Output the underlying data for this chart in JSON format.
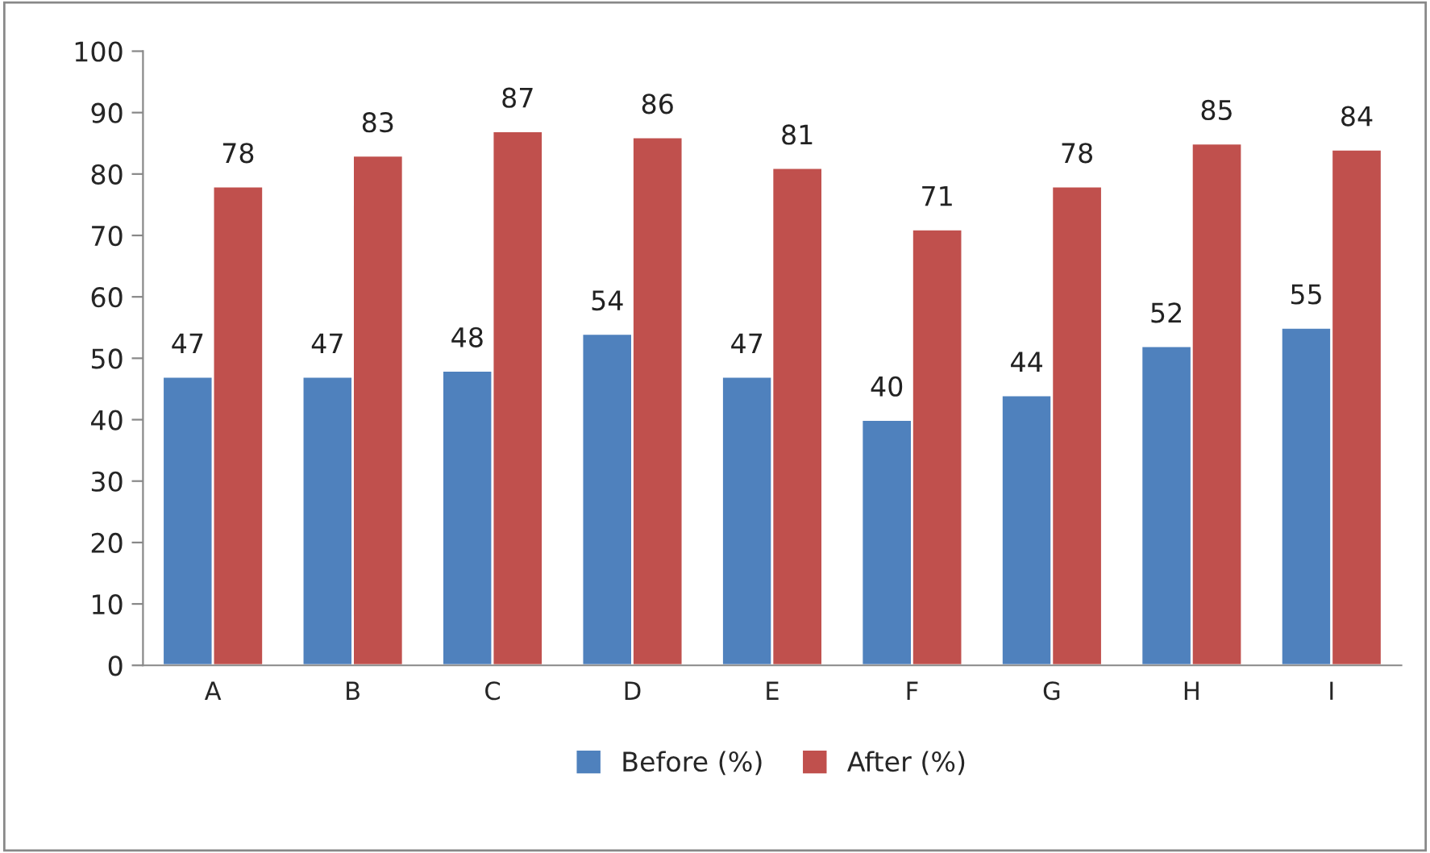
{
  "chart_data": {
    "type": "bar",
    "categories": [
      "A",
      "B",
      "C",
      "D",
      "E",
      "F",
      "G",
      "H",
      "I"
    ],
    "series": [
      {
        "name": "Before (%)",
        "color": "#4f81bd",
        "values": [
          47,
          47,
          48,
          54,
          47,
          40,
          44,
          52,
          55
        ]
      },
      {
        "name": "After (%)",
        "color": "#c0504d",
        "values": [
          78,
          83,
          87,
          86,
          81,
          71,
          78,
          85,
          84
        ]
      }
    ],
    "ylim": [
      0,
      100
    ],
    "yticks": [
      0,
      10,
      20,
      30,
      40,
      50,
      60,
      70,
      80,
      90,
      100
    ],
    "data_labels": true,
    "legend": "bottom",
    "grid": false
  }
}
